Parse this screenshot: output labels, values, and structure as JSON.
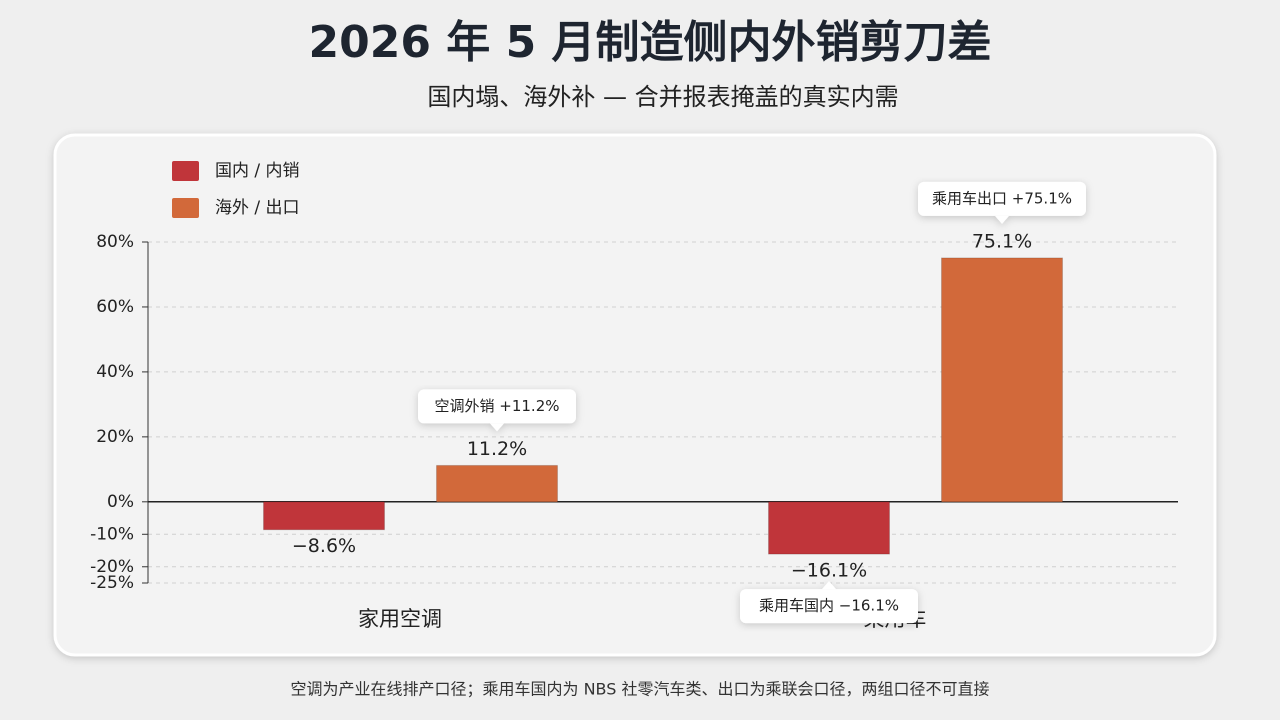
{
  "chart_data": {
    "type": "bar",
    "title": "2026 年 5 月制造侧内外销剪刀差",
    "subtitle": "国内塌、海外补 — 合并报表掩盖的真实内需",
    "categories": [
      "家用空调",
      "乘用车"
    ],
    "series": [
      {
        "name": "国内 / 内销",
        "color": "#c0353a",
        "values": [
          -8.6,
          -16.1
        ],
        "value_labels": [
          "−8.6%",
          "−16.1%"
        ]
      },
      {
        "name": "海外 / 出口",
        "color": "#d2693a",
        "values": [
          11.2,
          75.1
        ],
        "value_labels": [
          "11.2%",
          "75.1%"
        ]
      }
    ],
    "ylim": [
      -25,
      80
    ],
    "yticks": [
      {
        "value": 80,
        "label": "80%"
      },
      {
        "value": 60,
        "label": "60%"
      },
      {
        "value": 40,
        "label": "40%"
      },
      {
        "value": 20,
        "label": "20%"
      },
      {
        "value": 0,
        "label": "0%"
      },
      {
        "value": -10,
        "label": "-10%"
      },
      {
        "value": -20,
        "label": "-20%"
      },
      {
        "value": -25,
        "label": "-25%"
      }
    ],
    "grid": true,
    "legend": "top-left",
    "annotations": [
      "空调外销 +11.2%",
      "乘用车出口 +75.1%",
      "乘用车国内 −16.1%"
    ],
    "footnote": "空调为产业在线排产口径；乘用车国内为 NBS 社零汽车类、出口为乘联会口径，两组口径不可直接"
  }
}
